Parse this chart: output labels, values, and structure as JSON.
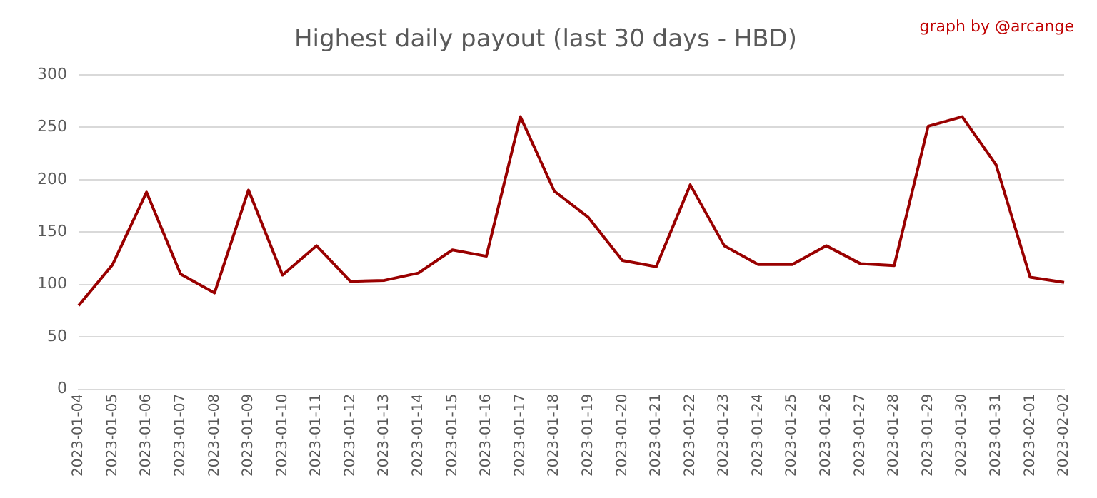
{
  "chart_data": {
    "type": "line",
    "title": "Highest daily payout (last 30 days - HBD)",
    "annotations": [
      "graph by @arcange"
    ],
    "categories": [
      "2023-01-04",
      "2023-01-05",
      "2023-01-06",
      "2023-01-07",
      "2023-01-08",
      "2023-01-09",
      "2023-01-10",
      "2023-01-11",
      "2023-01-12",
      "2023-01-13",
      "2023-01-14",
      "2023-01-15",
      "2023-01-16",
      "2023-01-17",
      "2023-01-18",
      "2023-01-19",
      "2023-01-20",
      "2023-01-21",
      "2023-01-22",
      "2023-01-23",
      "2023-01-24",
      "2023-01-25",
      "2023-01-26",
      "2023-01-27",
      "2023-01-28",
      "2023-01-29",
      "2023-01-30",
      "2023-01-31",
      "2023-02-01",
      "2023-02-02"
    ],
    "series": [
      {
        "color": "#990000",
        "values": [
          80,
          119,
          188,
          110,
          92,
          190,
          109,
          137,
          103,
          104,
          111,
          133,
          127,
          260,
          189,
          164,
          123,
          117,
          195,
          137,
          119,
          119,
          137,
          120,
          118,
          251,
          260,
          214,
          107,
          102
        ]
      }
    ],
    "ylim": [
      0,
      300
    ],
    "yticks": [
      0,
      50,
      100,
      150,
      200,
      250,
      300
    ],
    "grid": "y",
    "legend": false,
    "marker": "none",
    "line_style": "solid"
  }
}
